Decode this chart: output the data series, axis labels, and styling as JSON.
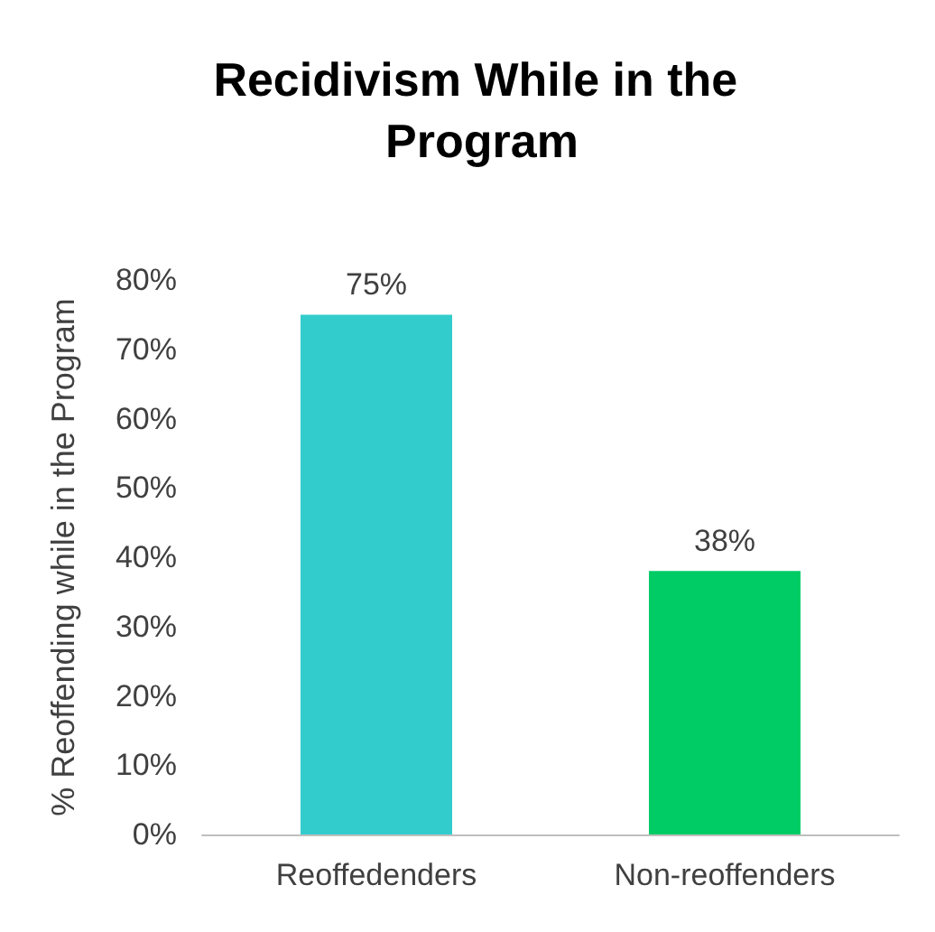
{
  "chart_data": {
    "type": "bar",
    "title": "Recidivism While in the Program",
    "ylabel": "% Reoffending while in the Program",
    "categories": [
      "Reoffedenders",
      "Non-reoffenders"
    ],
    "values": [
      75,
      38
    ],
    "colors": [
      "#33cccc",
      "#00cc66"
    ],
    "value_labels": [
      "75%",
      "38%"
    ],
    "ylim": [
      0,
      80
    ],
    "yticks": [
      {
        "value": 0,
        "label": "0%"
      },
      {
        "value": 10,
        "label": "10%"
      },
      {
        "value": 20,
        "label": "20%"
      },
      {
        "value": 30,
        "label": "30%"
      },
      {
        "value": 40,
        "label": "40%"
      },
      {
        "value": 50,
        "label": "50%"
      },
      {
        "value": 60,
        "label": "60%"
      },
      {
        "value": 70,
        "label": "70%"
      },
      {
        "value": 80,
        "label": "80%"
      }
    ],
    "grid": false
  }
}
